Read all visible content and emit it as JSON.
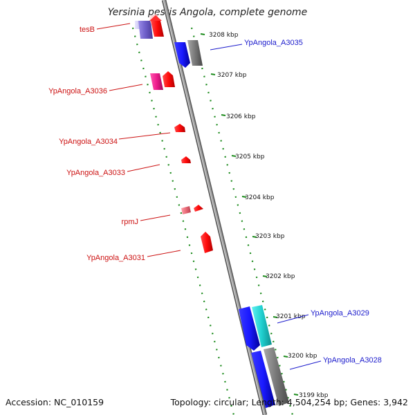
{
  "title": "Yersinia pestis Angola, complete genome",
  "footer": {
    "accession": "Accession: NC_010159",
    "topology": "Topology: circular; Length: 4,504,254 bp; Genes: 3,942"
  },
  "colors": {
    "left_label": "#cc1111",
    "right_label": "#1a1acc",
    "backbone": "#8c8c8c",
    "tick_marks": "#1a8a1a"
  },
  "kbp_ticks": [
    "3208 kbp",
    "3207 kbp",
    "3206 kbp",
    "3205 kbp",
    "3204 kbp",
    "3203 kbp",
    "3202 kbp",
    "3201 kbp",
    "3200 kbp",
    "3199 kbp"
  ],
  "genes_left": [
    {
      "name": "tesB",
      "color": "#ff2020"
    },
    {
      "name": "YpAngola_A3036",
      "color": "#ff1a1a"
    },
    {
      "name": "YpAngola_A3034",
      "color": "#ff1a1a"
    },
    {
      "name": "YpAngola_A3033",
      "color": "#ff1a1a"
    },
    {
      "name": "rpmJ",
      "color": "#e85a6a"
    },
    {
      "name": "YpAngola_A3031",
      "color": "#ff1a1a"
    }
  ],
  "genes_right": [
    {
      "name": "YpAngola_A3035",
      "color": "#2020ff"
    },
    {
      "name": "YpAngola_A3029",
      "color": "#2020ee"
    },
    {
      "name": "YpAngola_A3028",
      "color": "#2020ee"
    }
  ]
}
